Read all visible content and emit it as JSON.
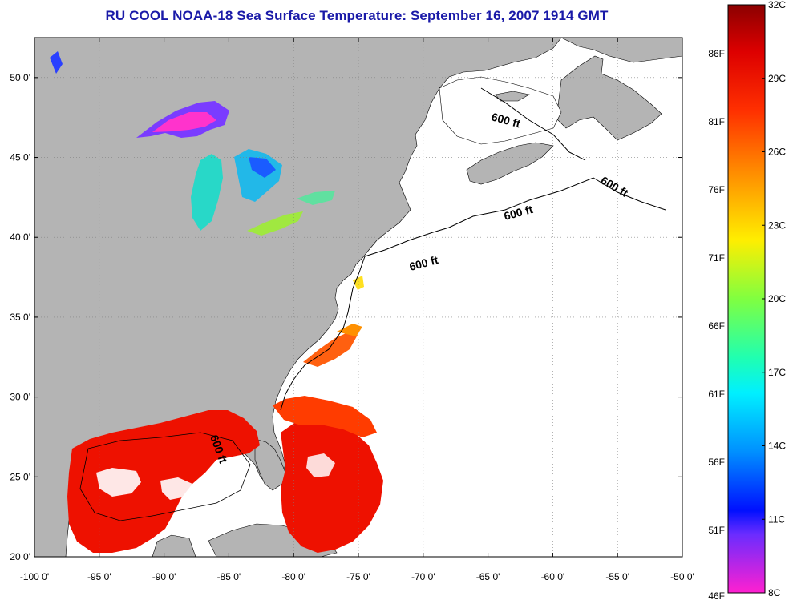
{
  "title": "RU COOL  NOAA-18  Sea Surface Temperature:  September 16, 2007 1914 GMT",
  "map": {
    "lon_range": [
      -100,
      -50
    ],
    "lat_range": [
      20,
      52.5
    ],
    "lon_ticks": [
      "-100 0'",
      "-95 0'",
      "-90 0'",
      "-85 0'",
      "-80 0'",
      "-75 0'",
      "-70 0'",
      "-65 0'",
      "-60 0'",
      "-55 0'",
      "-50 0'"
    ],
    "lat_ticks": [
      "20 0'",
      "25 0'",
      "30 0'",
      "35 0'",
      "40 0'",
      "45 0'",
      "50 0'"
    ],
    "grid": true,
    "depth_contour_labels": [
      "600 ft",
      "600 ft",
      "600 ft",
      "600 ft",
      "600 ft"
    ],
    "colors": {
      "land": "#b4b4b4",
      "ocean_nodata": "#ffffff",
      "grid": "#808080"
    }
  },
  "colorbar": {
    "celsius_labels": [
      "32C",
      "29C",
      "26C",
      "23C",
      "20C",
      "17C",
      "14C",
      "11C",
      "8C"
    ],
    "fahrenheit_labels": [
      "86F",
      "81F",
      "76F",
      "71F",
      "66F",
      "61F",
      "56F",
      "51F",
      "46F"
    ],
    "range_c": [
      8,
      32
    ]
  }
}
